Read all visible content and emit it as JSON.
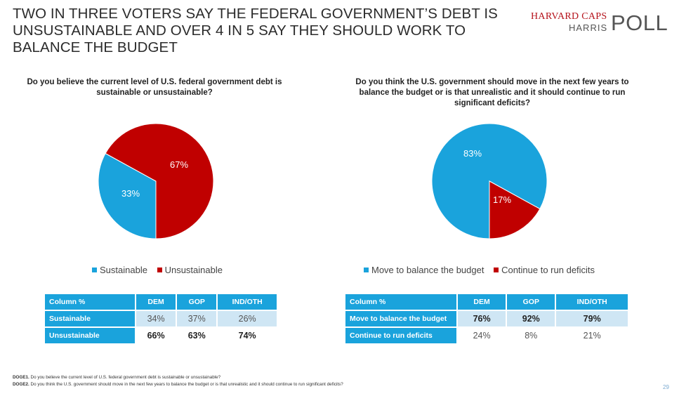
{
  "title": "TWO IN THREE VOTERS SAY THE FEDERAL GOVERNMENT’S DEBT IS UNSUSTAINABLE AND OVER 4 IN 5 SAY THEY SHOULD WORK TO BALANCE THE BUDGET",
  "logo": {
    "line1": "HARVARD CAPS",
    "line2": "HARRIS",
    "line3": "POLL"
  },
  "colors": {
    "blue": "#1aa3dc",
    "red": "#c00000"
  },
  "chart_data": [
    {
      "type": "pie",
      "title": "Do you believe the current level of U.S. federal government debt is sustainable or unsustainable?",
      "categories": [
        "Sustainable",
        "Unsustainable"
      ],
      "values": [
        33,
        67
      ],
      "labels": [
        "33%",
        "67%"
      ],
      "colors": [
        "#1aa3dc",
        "#c00000"
      ],
      "legend_position": "bottom"
    },
    {
      "type": "pie",
      "title": "Do you think the U.S. government should move in the next few years to balance the budget or is that unrealistic and it should continue to run significant deficits?",
      "categories": [
        "Move to balance the budget",
        "Continue to run deficits"
      ],
      "values": [
        83,
        17
      ],
      "labels": [
        "83%",
        "17%"
      ],
      "colors": [
        "#1aa3dc",
        "#c00000"
      ],
      "legend_position": "bottom"
    }
  ],
  "table1": {
    "header": [
      "Column %",
      "DEM",
      "GOP",
      "IND/OTH"
    ],
    "rows": [
      {
        "label": "Sustainable",
        "values": [
          "34%",
          "37%",
          "26%"
        ]
      },
      {
        "label": "Unsustainable",
        "values": [
          "66%",
          "63%",
          "74%"
        ]
      }
    ]
  },
  "table2": {
    "header": [
      "Column %",
      "DEM",
      "GOP",
      "IND/OTH"
    ],
    "rows": [
      {
        "label": "Move to balance the budget",
        "values": [
          "76%",
          "92%",
          "79%"
        ]
      },
      {
        "label": "Continue to run deficits",
        "values": [
          "24%",
          "8%",
          "21%"
        ]
      }
    ]
  },
  "footnotes": [
    {
      "code": "DOGE1.",
      "text": "Do you believe the current level of U.S. federal government debt is sustainable or unsustainable?"
    },
    {
      "code": "DOGE2.",
      "text": "Do you think the U.S. government should move in the next few years to balance the budget or is that unrealistic and it should continue to run significant deficits?"
    }
  ],
  "page_number": "29"
}
